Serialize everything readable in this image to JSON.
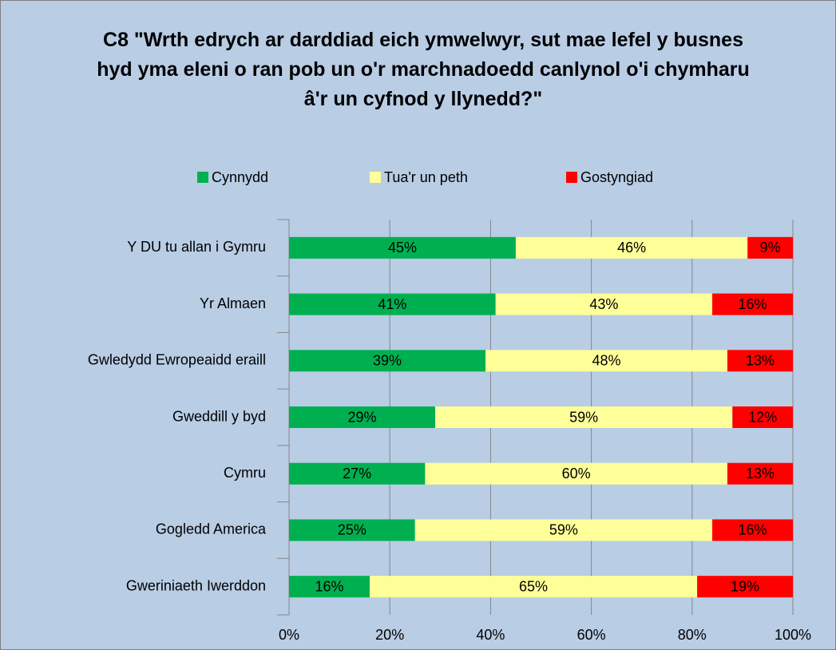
{
  "chart_data": {
    "type": "stacked_barh",
    "title": "C8 \"Wrth edrych ar darddiad eich ymwelwyr,  sut mae lefel y busnes hyd yma eleni o ran pob un o'r marchnadoedd canlynol o'i chymharu â'r un cyfnod y llynedd?\"",
    "categories": [
      "Y DU tu allan i Gymru",
      "Yr Almaen",
      "Gwledydd Ewropeaidd eraill",
      "Gweddill y byd",
      "Cymru",
      "Gogledd America",
      "Gweriniaeth Iwerddon"
    ],
    "series": [
      {
        "name": "Cynnydd",
        "color": "#00b050",
        "values": [
          45,
          41,
          39,
          29,
          27,
          25,
          16
        ],
        "value_labels": [
          "45%",
          "41%",
          "39%",
          "29%",
          "27%",
          "25%",
          "16%"
        ]
      },
      {
        "name": "Tua'r un peth",
        "color": "#ffff99",
        "values": [
          46,
          43,
          48,
          59,
          60,
          59,
          65
        ],
        "value_labels": [
          "46%",
          "43%",
          "48%",
          "59%",
          "60%",
          "59%",
          "65%"
        ]
      },
      {
        "name": "Gostyngiad",
        "color": "#ff0000",
        "values": [
          9,
          16,
          13,
          12,
          13,
          16,
          19
        ],
        "value_labels": [
          "9%",
          "16%",
          "13%",
          "12%",
          "13%",
          "16%",
          "19%"
        ]
      }
    ],
    "xlim": [
      0,
      100
    ],
    "xticks": [
      {
        "value": 0,
        "label": "0%"
      },
      {
        "value": 20,
        "label": "20%"
      },
      {
        "value": 40,
        "label": "40%"
      },
      {
        "value": 60,
        "label": "60%"
      },
      {
        "value": 80,
        "label": "80%"
      },
      {
        "value": 100,
        "label": "100%"
      }
    ],
    "grid": true,
    "legend": "top"
  }
}
